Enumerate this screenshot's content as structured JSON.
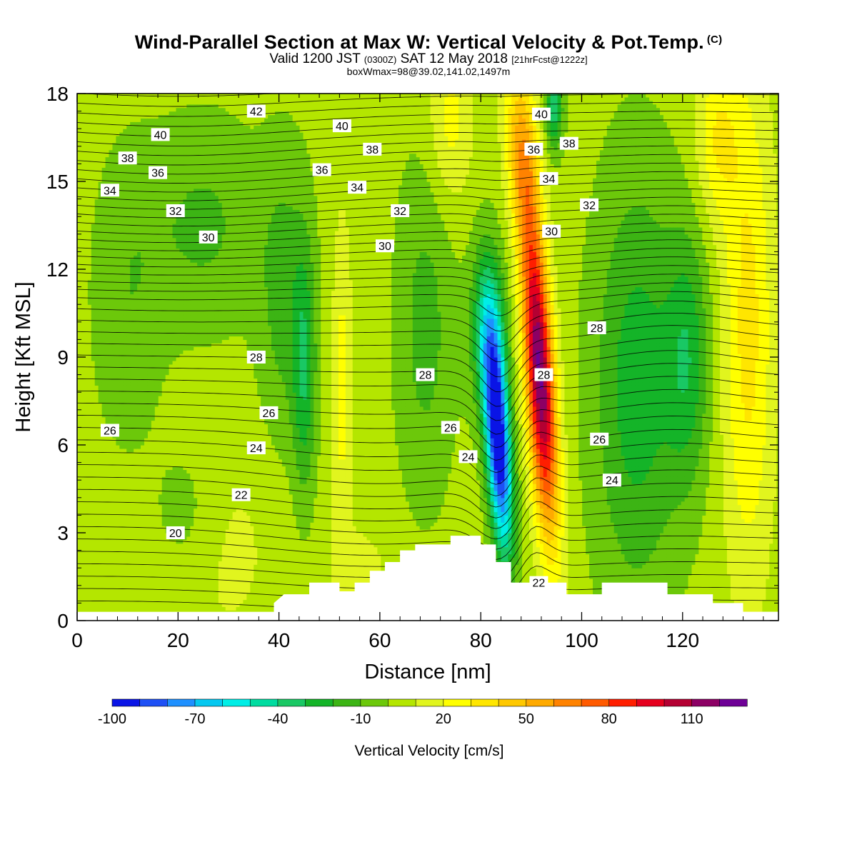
{
  "title_main": "Wind-Parallel Section at Max W: Vertical Velocity & Pot.Temp.",
  "title_c": "(C)",
  "subtitle_valid": "Valid 1200 JST",
  "subtitle_z": "(0300Z)",
  "subtitle_date": "SAT 12 May 2018",
  "subtitle_fcst": "[21hrFcst@1222z]",
  "subtitle_box": "boxWmax=98@39.02,141.02,1497m",
  "chart_data": {
    "type": "heatmap",
    "xlabel": "Distance [nm]",
    "ylabel": "Height [Kft MSL]",
    "xlim": [
      0,
      139
    ],
    "ylim": [
      0,
      18
    ],
    "x_ticks": [
      0,
      20,
      40,
      60,
      80,
      100,
      120
    ],
    "y_ticks": [
      0,
      3,
      6,
      9,
      12,
      15,
      18
    ],
    "colorbar_label": "Vertical Velocity [cm/s]",
    "colorbar_tick_labels": [
      "-100",
      "-70",
      "-40",
      "-10",
      "20",
      "50",
      "80",
      "110"
    ],
    "colorbar_tick_values": [
      -100,
      -70,
      -40,
      -10,
      20,
      50,
      80,
      110
    ],
    "colorbar_levels": [
      -100,
      -90,
      -80,
      -70,
      -60,
      -50,
      -40,
      -30,
      -20,
      -10,
      0,
      10,
      20,
      30,
      40,
      50,
      60,
      70,
      80,
      90,
      100,
      110,
      120
    ],
    "colorbar_colors": [
      "#0a14e6",
      "#1e50f5",
      "#1e90ff",
      "#05c8f0",
      "#00eee6",
      "#00dca0",
      "#19c864",
      "#14b428",
      "#3cb414",
      "#6cc80a",
      "#b4e600",
      "#e1f51e",
      "#ffff00",
      "#ffe600",
      "#ffc800",
      "#ffaa00",
      "#ff8200",
      "#ff5a00",
      "#ff1e00",
      "#e6001e",
      "#b40032",
      "#8c0064",
      "#6e0096"
    ],
    "updraft": {
      "x": 91,
      "center_ft_kft": 9,
      "peak": 110
    },
    "downdraft": {
      "x": 84,
      "center_ft_kft": 6.5,
      "peak": -100
    },
    "terrain": [
      [
        39,
        0.6
      ],
      [
        41,
        0.9
      ],
      [
        46,
        0.9
      ],
      [
        46,
        1.3
      ],
      [
        52,
        1.3
      ],
      [
        52,
        1.0
      ],
      [
        55,
        1.0
      ],
      [
        55,
        1.3
      ],
      [
        58,
        1.3
      ],
      [
        58,
        1.7
      ],
      [
        61,
        1.7
      ],
      [
        61,
        2.0
      ],
      [
        64,
        2.0
      ],
      [
        64,
        2.4
      ],
      [
        67,
        2.4
      ],
      [
        67,
        2.6
      ],
      [
        74,
        2.6
      ],
      [
        74,
        2.9
      ],
      [
        80,
        2.9
      ],
      [
        80,
        2.6
      ],
      [
        83,
        2.6
      ],
      [
        83,
        2.0
      ],
      [
        86,
        2.0
      ],
      [
        86,
        1.3
      ],
      [
        97,
        1.3
      ],
      [
        97,
        0.9
      ],
      [
        104,
        0.9
      ],
      [
        104,
        1.3
      ],
      [
        117,
        1.3
      ],
      [
        117,
        0.9
      ],
      [
        126,
        0.9
      ],
      [
        126,
        0.6
      ],
      [
        132,
        0.6
      ],
      [
        132,
        0.3
      ],
      [
        139,
        0.3
      ]
    ],
    "theta_contour_labels": [
      {
        "text": "42",
        "x": 35.5,
        "y": 17.4
      },
      {
        "text": "40",
        "x": 16.5,
        "y": 16.6
      },
      {
        "text": "40",
        "x": 52.5,
        "y": 16.9
      },
      {
        "text": "40",
        "x": 92,
        "y": 17.3
      },
      {
        "text": "38",
        "x": 10,
        "y": 15.8
      },
      {
        "text": "38",
        "x": 58.5,
        "y": 16.1
      },
      {
        "text": "38",
        "x": 97.5,
        "y": 16.3
      },
      {
        "text": "36",
        "x": 16,
        "y": 15.3
      },
      {
        "text": "36",
        "x": 48.5,
        "y": 15.4
      },
      {
        "text": "36",
        "x": 90.5,
        "y": 16.1
      },
      {
        "text": "34",
        "x": 6.5,
        "y": 14.7
      },
      {
        "text": "34",
        "x": 55.5,
        "y": 14.8
      },
      {
        "text": "34",
        "x": 93.5,
        "y": 15.1
      },
      {
        "text": "32",
        "x": 19.5,
        "y": 14.0
      },
      {
        "text": "32",
        "x": 64,
        "y": 14.0
      },
      {
        "text": "32",
        "x": 101.5,
        "y": 14.2
      },
      {
        "text": "30",
        "x": 26,
        "y": 13.1
      },
      {
        "text": "30",
        "x": 61,
        "y": 12.8
      },
      {
        "text": "30",
        "x": 94,
        "y": 13.3
      },
      {
        "text": "28",
        "x": 35.5,
        "y": 9.0
      },
      {
        "text": "28",
        "x": 69,
        "y": 8.4
      },
      {
        "text": "28",
        "x": 92.5,
        "y": 8.4
      },
      {
        "text": "28",
        "x": 103,
        "y": 10.0
      },
      {
        "text": "26",
        "x": 6.5,
        "y": 6.5
      },
      {
        "text": "26",
        "x": 38,
        "y": 7.1
      },
      {
        "text": "26",
        "x": 74,
        "y": 6.6
      },
      {
        "text": "26",
        "x": 103.5,
        "y": 6.2
      },
      {
        "text": "24",
        "x": 35.5,
        "y": 5.9
      },
      {
        "text": "24",
        "x": 77.5,
        "y": 5.6
      },
      {
        "text": "24",
        "x": 106,
        "y": 4.8
      },
      {
        "text": "22",
        "x": 32.5,
        "y": 4.3
      },
      {
        "text": "22",
        "x": 91.5,
        "y": 1.3
      },
      {
        "text": "20",
        "x": 19.5,
        "y": 3.0
      }
    ],
    "theta_contour_levels": [
      20,
      22,
      24,
      26,
      28,
      30,
      32,
      34,
      36,
      38,
      40,
      42
    ],
    "grid": false
  }
}
